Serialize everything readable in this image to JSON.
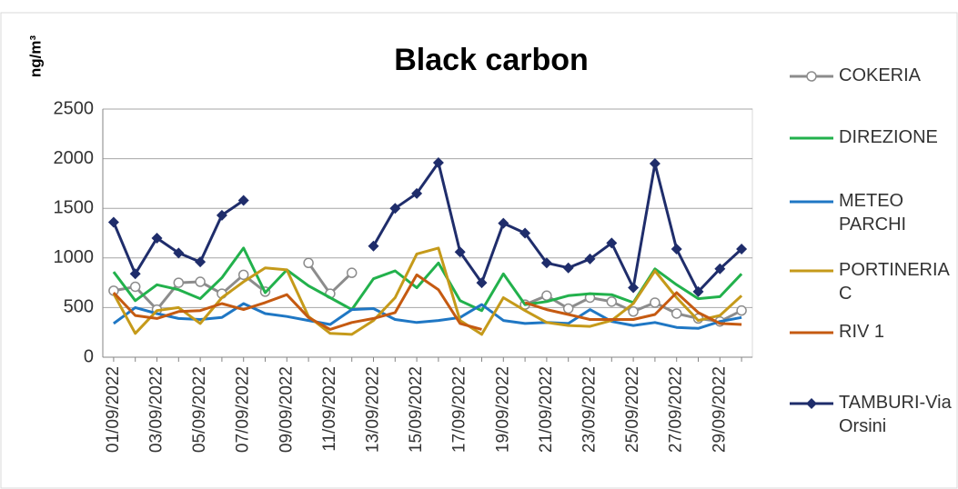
{
  "chart_data": {
    "type": "line",
    "title": "Black carbon",
    "y_label": "ng/m³",
    "categories": [
      "01/09/2022",
      null,
      "03/09/2022",
      null,
      "05/09/2022",
      null,
      "07/09/2022",
      null,
      "09/09/2022",
      null,
      "11/09/2022",
      null,
      "13/09/2022",
      null,
      "15/09/2022",
      null,
      "17/09/2022",
      null,
      "19/09/2022",
      null,
      "21/09/2022",
      null,
      "23/09/2022",
      null,
      "25/09/2022",
      null,
      "27/09/2022",
      null,
      "29/09/2022",
      null
    ],
    "ylim": [
      0,
      2500
    ],
    "yticks": [
      0,
      500,
      1000,
      1500,
      2000,
      2500
    ],
    "grid": true,
    "series": [
      {
        "name": "COKERIA",
        "color": "#8c8c8c",
        "marker": "circle",
        "values": [
          670,
          710,
          480,
          750,
          760,
          640,
          830,
          660,
          null,
          950,
          640,
          850,
          null,
          null,
          null,
          null,
          null,
          null,
          null,
          530,
          620,
          490,
          600,
          560,
          460,
          550,
          440,
          390,
          360,
          470
        ]
      },
      {
        "name": "DIREZIONE",
        "color": "#22b14c",
        "values": [
          860,
          570,
          730,
          680,
          590,
          800,
          1100,
          650,
          880,
          720,
          600,
          480,
          790,
          870,
          700,
          950,
          570,
          470,
          840,
          530,
          560,
          620,
          640,
          630,
          550,
          890,
          730,
          590,
          610,
          840
        ]
      },
      {
        "name": "METEO PARCHI",
        "color": "#1f77c4",
        "values": [
          340,
          500,
          440,
          390,
          380,
          400,
          540,
          440,
          410,
          370,
          330,
          480,
          490,
          380,
          350,
          370,
          400,
          530,
          370,
          340,
          350,
          340,
          480,
          360,
          320,
          350,
          300,
          290,
          360,
          400
        ]
      },
      {
        "name": "PORTINERIA C",
        "color": "#c59a1a",
        "values": [
          640,
          240,
          470,
          500,
          340,
          600,
          760,
          900,
          880,
          410,
          240,
          230,
          370,
          600,
          1040,
          1100,
          370,
          230,
          600,
          470,
          350,
          320,
          310,
          370,
          540,
          870,
          600,
          370,
          420,
          620
        ]
      },
      {
        "name": "RIV 1",
        "color": "#c55a11",
        "values": [
          650,
          420,
          390,
          460,
          470,
          540,
          480,
          550,
          630,
          400,
          280,
          350,
          390,
          450,
          830,
          680,
          340,
          280,
          null,
          550,
          480,
          430,
          380,
          380,
          380,
          430,
          650,
          450,
          340,
          330
        ]
      },
      {
        "name": "TAMBURI-Via Orsini",
        "color": "#1f2d6b",
        "marker": "diamond",
        "values": [
          1360,
          840,
          1200,
          1050,
          960,
          1430,
          1580,
          null,
          null,
          null,
          null,
          null,
          1120,
          1500,
          1650,
          1960,
          1060,
          750,
          1350,
          1250,
          950,
          900,
          990,
          1150,
          700,
          1950,
          1090,
          660,
          890,
          1090
        ]
      }
    ]
  }
}
